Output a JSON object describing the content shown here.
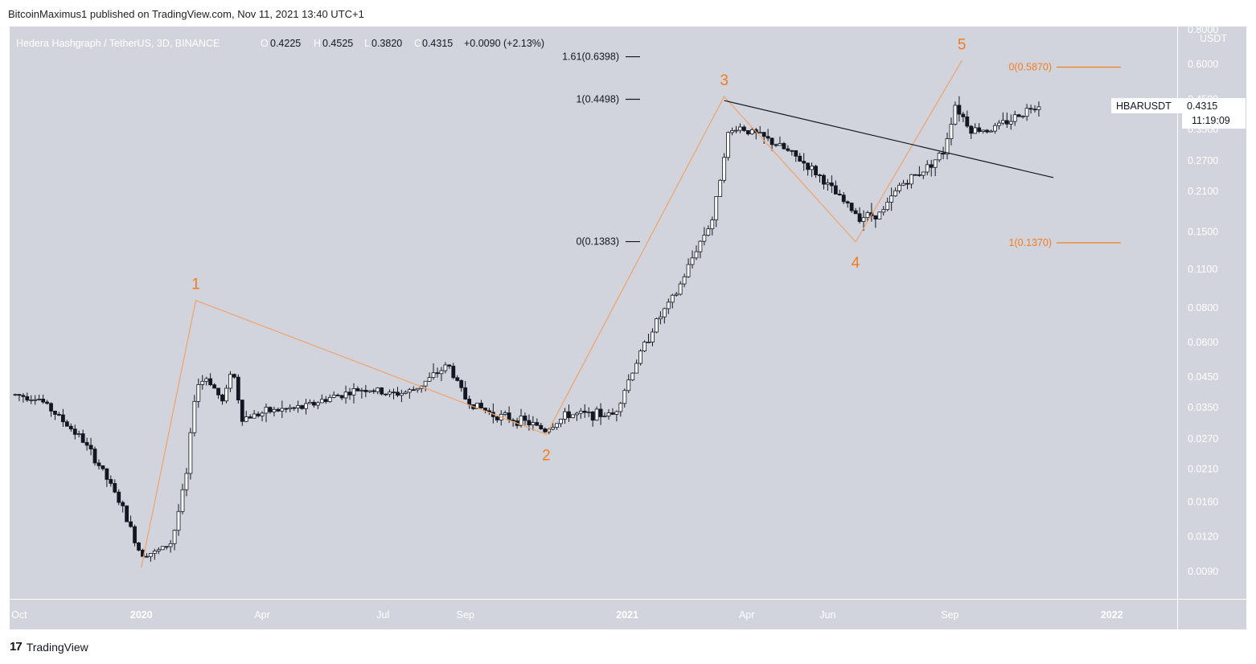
{
  "header": {
    "text": "BitcoinMaximus1 published on TradingView.com, Nov 11, 2021 13:40 UTC+1"
  },
  "footer": {
    "logo": "17",
    "brand": "TradingView"
  },
  "colors": {
    "background": "#d1d4dc",
    "accent_orange": "#f57c1f",
    "wave_line": "#f0a36a",
    "candle": "#131722",
    "trendline": "#131722"
  },
  "legend": {
    "symbol": "Hedera Hashgraph / TetherUS, 3D, BINANCE",
    "open_key": "O",
    "open": "0.4225",
    "high_key": "H",
    "high": "0.4525",
    "low_key": "L",
    "low": "0.3820",
    "close_key": "C",
    "close": "0.4315",
    "change": "+0.0090 (+2.13%)"
  },
  "price_badge": {
    "symbol": "HBARUSDT",
    "price": "0.4315",
    "countdown": "11:19:09"
  },
  "chart_data": {
    "type": "candlestick",
    "title": "Hedera Hashgraph / TetherUS, 3D, BINANCE",
    "y_unit": "USDT",
    "y_scale": "log",
    "ylim": [
      0.008,
      0.8
    ],
    "y_ticks": [
      "0.8000",
      "0.6000",
      "0.4500",
      "0.3500",
      "0.2700",
      "0.2100",
      "0.1500",
      "0.1100",
      "0.0800",
      "0.0600",
      "0.0450",
      "0.0350",
      "0.0270",
      "0.0210",
      "0.0160",
      "0.0120",
      "0.0090"
    ],
    "x_ticks": [
      {
        "label": "Oct",
        "date": "2019-10-01",
        "bold": false
      },
      {
        "label": "2020",
        "date": "2020-01-01",
        "bold": true
      },
      {
        "label": "Apr",
        "date": "2020-04-01",
        "bold": false
      },
      {
        "label": "Jul",
        "date": "2020-07-01",
        "bold": false
      },
      {
        "label": "Sep",
        "date": "2020-09-01",
        "bold": false
      },
      {
        "label": "2021",
        "date": "2021-01-01",
        "bold": true
      },
      {
        "label": "Apr",
        "date": "2021-04-01",
        "bold": false
      },
      {
        "label": "Jun",
        "date": "2021-06-01",
        "bold": false
      },
      {
        "label": "Sep",
        "date": "2021-09-01",
        "bold": false
      },
      {
        "label": "2022",
        "date": "2022-01-01",
        "bold": true
      }
    ],
    "price_path": [
      [
        "2019-09-28",
        0.039
      ],
      [
        "2019-10-18",
        0.038
      ],
      [
        "2019-11-01",
        0.033
      ],
      [
        "2019-11-20",
        0.027
      ],
      [
        "2019-12-05",
        0.021
      ],
      [
        "2019-12-20",
        0.0155
      ],
      [
        "2020-01-03",
        0.0105
      ],
      [
        "2020-01-15",
        0.0105
      ],
      [
        "2020-01-27",
        0.0115
      ],
      [
        "2020-02-07",
        0.02
      ],
      [
        "2020-02-14",
        0.042
      ],
      [
        "2020-02-23",
        0.045
      ],
      [
        "2020-03-06",
        0.036
      ],
      [
        "2020-03-12",
        0.05
      ],
      [
        "2020-03-20",
        0.032
      ],
      [
        "2020-04-10",
        0.034
      ],
      [
        "2020-05-05",
        0.035
      ],
      [
        "2020-05-25",
        0.038
      ],
      [
        "2020-06-20",
        0.041
      ],
      [
        "2020-07-10",
        0.039
      ],
      [
        "2020-07-25",
        0.04
      ],
      [
        "2020-08-10",
        0.045
      ],
      [
        "2020-08-22",
        0.05
      ],
      [
        "2020-09-05",
        0.037
      ],
      [
        "2020-09-25",
        0.033
      ],
      [
        "2020-10-20",
        0.031
      ],
      [
        "2020-11-03",
        0.029
      ],
      [
        "2020-11-20",
        0.033
      ],
      [
        "2020-12-10",
        0.033
      ],
      [
        "2020-12-25",
        0.033
      ],
      [
        "2021-01-10",
        0.05
      ],
      [
        "2021-01-25",
        0.07
      ],
      [
        "2021-02-10",
        0.09
      ],
      [
        "2021-02-25",
        0.13
      ],
      [
        "2021-03-10",
        0.17
      ],
      [
        "2021-03-20",
        0.33
      ],
      [
        "2021-03-28",
        0.36
      ],
      [
        "2021-04-15",
        0.33
      ],
      [
        "2021-05-01",
        0.3
      ],
      [
        "2021-05-15",
        0.27
      ],
      [
        "2021-05-28",
        0.24
      ],
      [
        "2021-06-12",
        0.2
      ],
      [
        "2021-06-28",
        0.17
      ],
      [
        "2021-07-15",
        0.175
      ],
      [
        "2021-07-28",
        0.22
      ],
      [
        "2021-08-15",
        0.25
      ],
      [
        "2021-08-30",
        0.29
      ],
      [
        "2021-09-08",
        0.43
      ],
      [
        "2021-09-20",
        0.35
      ],
      [
        "2021-10-05",
        0.35
      ],
      [
        "2021-10-20",
        0.38
      ],
      [
        "2021-11-08",
        0.4315
      ]
    ],
    "elliott_waves": [
      {
        "label": "1",
        "date": "2020-02-11",
        "price": 0.085,
        "position": "above"
      },
      {
        "label": "2",
        "date": "2020-11-01",
        "price": 0.028,
        "position": "below"
      },
      {
        "label": "3",
        "date": "2021-03-15",
        "price": 0.46,
        "position": "above"
      },
      {
        "label": "4",
        "date": "2021-06-22",
        "price": 0.138,
        "position": "below"
      },
      {
        "label": "5",
        "date": "2021-09-10",
        "price": 0.62,
        "position": "above"
      }
    ],
    "wave_path": [
      [
        "2020-01-01",
        0.0093
      ],
      [
        "2020-02-11",
        0.085
      ],
      [
        "2020-11-01",
        0.028
      ],
      [
        "2021-03-15",
        0.46
      ],
      [
        "2021-06-22",
        0.138
      ],
      [
        "2021-09-10",
        0.62
      ]
    ],
    "trendline": [
      [
        "2021-03-15",
        0.445
      ],
      [
        "2021-11-18",
        0.235
      ]
    ],
    "fib_levels_left": [
      {
        "label": "1.61(0.6398)",
        "price": 0.6398
      },
      {
        "label": "1(0.4498)",
        "price": 0.4498
      },
      {
        "label": "0(0.1383)",
        "price": 0.1383
      }
    ],
    "fib_levels_right": [
      {
        "label": "0(0.5870)",
        "price": 0.587
      },
      {
        "label": "1(0.1370)",
        "price": 0.137
      }
    ]
  }
}
